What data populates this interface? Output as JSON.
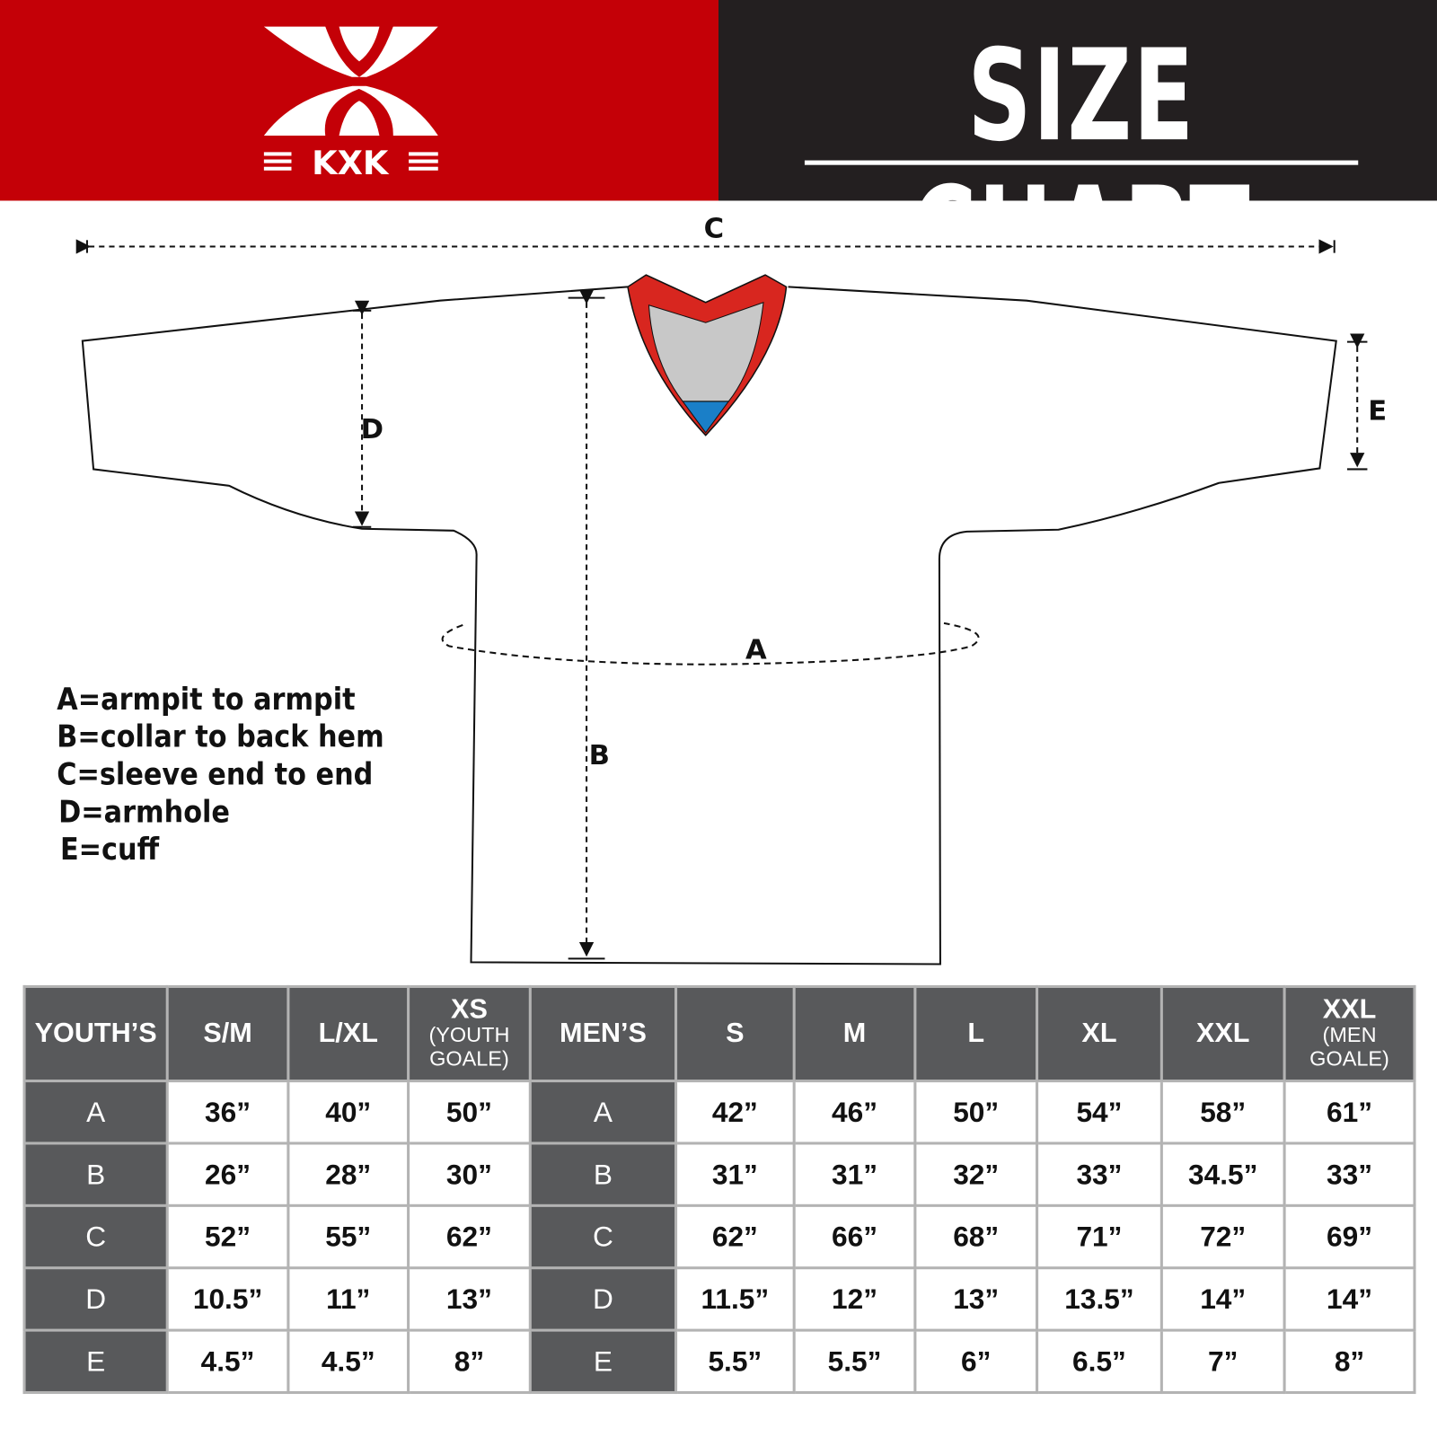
{
  "brand": {
    "logo_text": "KXK",
    "logo_color": "#c40007"
  },
  "header": {
    "title": "SIZE CHART",
    "bg_dark": "#231f20"
  },
  "diagram": {
    "labels": {
      "A": "A",
      "B": "B",
      "C": "C",
      "D": "D",
      "E": "E"
    },
    "collar_colors": {
      "trim": "#d8261f",
      "inner": "#c8c8c8",
      "accent": "#1a7fc8"
    }
  },
  "legend": [
    "A=armpit to armpit",
    "B=collar to back hem",
    "C=sleeve end to end",
    "D=armhole",
    "E=cuff"
  ],
  "table": {
    "headers": [
      {
        "main": "YOUTH’S",
        "sub": ""
      },
      {
        "main": "S/M",
        "sub": ""
      },
      {
        "main": "L/XL",
        "sub": ""
      },
      {
        "main": "XS",
        "sub": "(YOUTH GOALE)"
      },
      {
        "main": "MEN’S",
        "sub": ""
      },
      {
        "main": "S",
        "sub": ""
      },
      {
        "main": "M",
        "sub": ""
      },
      {
        "main": "L",
        "sub": ""
      },
      {
        "main": "XL",
        "sub": ""
      },
      {
        "main": "XXL",
        "sub": ""
      },
      {
        "main": "XXL",
        "sub": "(MEN GOALE)"
      }
    ],
    "rows": [
      [
        "A",
        "36”",
        "40”",
        "50”",
        "A",
        "42”",
        "46”",
        "50”",
        "54”",
        "58”",
        "61”"
      ],
      [
        "B",
        "26”",
        "28”",
        "30”",
        "B",
        "31”",
        "31”",
        "32”",
        "33”",
        "34.5”",
        "33”"
      ],
      [
        "C",
        "52”",
        "55”",
        "62”",
        "C",
        "62”",
        "66”",
        "68”",
        "71”",
        "72”",
        "69”"
      ],
      [
        "D",
        "10.5”",
        "11”",
        "13”",
        "D",
        "11.5”",
        "12”",
        "13”",
        "13.5”",
        "14”",
        "14”"
      ],
      [
        "E",
        "4.5”",
        "4.5”",
        "8”",
        "E",
        "5.5”",
        "5.5”",
        "6”",
        "6.5”",
        "7”",
        "8”"
      ]
    ]
  }
}
